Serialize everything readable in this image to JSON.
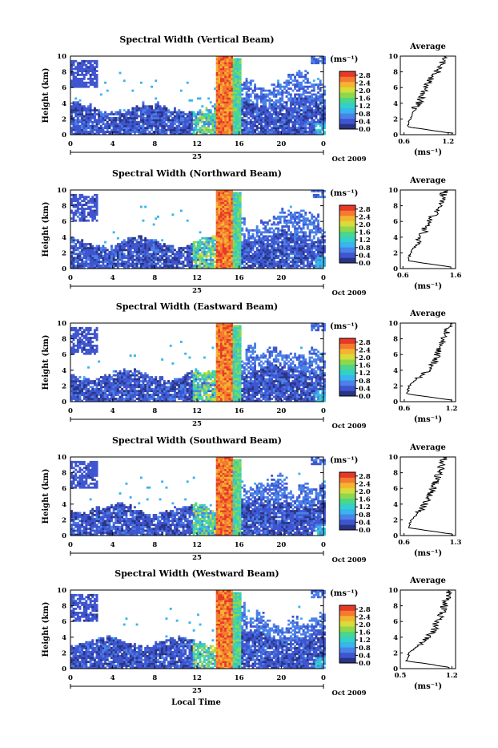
{
  "colorbar": {
    "unit": "(ms⁻¹)",
    "ticks": [
      "2.8",
      "2.4",
      "2.0",
      "1.6",
      "1.2",
      "0.8",
      "0.4",
      "0.0"
    ],
    "range": [
      0,
      3.0
    ],
    "colors": [
      "#2a3484",
      "#3f55d0",
      "#4a82e8",
      "#38b4ee",
      "#32d0c8",
      "#4cd68a",
      "#8ed84a",
      "#d8dc38",
      "#f4b430",
      "#f47a30",
      "#e83828"
    ]
  },
  "labels": {
    "ylabel": "Height (km)",
    "avg_title": "Average",
    "avg_unit": "(ms⁻¹)",
    "date_day": "25",
    "date_label": "Oct 2009",
    "xlabel": "Local Time"
  },
  "chart_data": [
    {
      "type": "heatmap",
      "title": "Spectral Width (Vertical Beam)",
      "x_ticks": [
        "0",
        "4",
        "8",
        "12",
        "16",
        "20",
        "0"
      ],
      "y_ticks": [
        "0",
        "2",
        "4",
        "6",
        "8",
        "10"
      ],
      "xlim": [
        0,
        24
      ],
      "ylim": [
        0,
        10
      ],
      "clim": [
        0,
        3.0
      ],
      "average_profile": {
        "x_ticks": [
          "0.6",
          "1.2"
        ],
        "xlim": [
          0.55,
          1.3
        ],
        "height_km": [
          0.2,
          1,
          2,
          3,
          4,
          5,
          6,
          7,
          8,
          9,
          10
        ],
        "spectral_width": [
          1.25,
          0.65,
          0.68,
          0.72,
          0.8,
          0.84,
          0.9,
          0.96,
          1.05,
          1.1,
          1.15
        ]
      }
    },
    {
      "type": "heatmap",
      "title": "Spectral Width (Northward Beam)",
      "x_ticks": [
        "0",
        "4",
        "8",
        "12",
        "16",
        "20",
        "0"
      ],
      "y_ticks": [
        "0",
        "2",
        "4",
        "6",
        "8",
        "10"
      ],
      "xlim": [
        0,
        24
      ],
      "ylim": [
        0,
        10
      ],
      "clim": [
        0,
        3.0
      ],
      "average_profile": {
        "x_ticks": [
          "0.6",
          "1.6"
        ],
        "xlim": [
          0.55,
          1.6
        ],
        "height_km": [
          0.2,
          1,
          2,
          3,
          4,
          5,
          6,
          7,
          8,
          9,
          10
        ],
        "spectral_width": [
          1.5,
          0.7,
          0.74,
          0.85,
          0.95,
          1.02,
          1.1,
          1.2,
          1.28,
          1.34,
          1.4
        ]
      }
    },
    {
      "type": "heatmap",
      "title": "Spectral Width (Eastward Beam)",
      "x_ticks": [
        "0",
        "4",
        "8",
        "12",
        "16",
        "20",
        "0"
      ],
      "y_ticks": [
        "0",
        "2",
        "4",
        "6",
        "8",
        "10"
      ],
      "xlim": [
        0,
        24
      ],
      "ylim": [
        0,
        10
      ],
      "clim": [
        0,
        3.0
      ],
      "average_profile": {
        "x_ticks": [
          "0.6",
          "1.2"
        ],
        "xlim": [
          0.55,
          1.25
        ],
        "height_km": [
          0.2,
          1,
          2,
          3,
          4,
          5,
          6,
          7,
          8,
          9,
          10
        ],
        "spectral_width": [
          1.2,
          0.64,
          0.66,
          0.78,
          0.9,
          0.98,
          1.02,
          1.05,
          1.1,
          1.15,
          1.18
        ]
      }
    },
    {
      "type": "heatmap",
      "title": "Spectral Width (Southward Beam)",
      "x_ticks": [
        "0",
        "4",
        "8",
        "12",
        "16",
        "20",
        "0"
      ],
      "y_ticks": [
        "0",
        "2",
        "4",
        "6",
        "8",
        "10"
      ],
      "xlim": [
        0,
        24
      ],
      "ylim": [
        0,
        10
      ],
      "clim": [
        0,
        3.0
      ],
      "average_profile": {
        "x_ticks": [
          "0.6",
          "1.3"
        ],
        "xlim": [
          0.55,
          1.3
        ],
        "height_km": [
          0.2,
          1,
          2,
          3,
          4,
          5,
          6,
          7,
          8,
          9,
          10
        ],
        "spectral_width": [
          1.25,
          0.66,
          0.7,
          0.8,
          0.88,
          0.95,
          1.0,
          1.04,
          1.08,
          1.12,
          1.15
        ]
      }
    },
    {
      "type": "heatmap",
      "title": "Spectral Width (Westward Beam)",
      "x_ticks": [
        "0",
        "4",
        "8",
        "12",
        "16",
        "20",
        "0"
      ],
      "y_ticks": [
        "0",
        "2",
        "4",
        "6",
        "8",
        "10"
      ],
      "xlim": [
        0,
        24
      ],
      "ylim": [
        0,
        10
      ],
      "clim": [
        0,
        3.0
      ],
      "average_profile": {
        "x_ticks": [
          "0.5",
          "1.2"
        ],
        "xlim": [
          0.5,
          1.25
        ],
        "height_km": [
          0.2,
          1,
          2,
          3,
          4,
          5,
          6,
          7,
          8,
          9,
          10
        ],
        "spectral_width": [
          1.15,
          0.58,
          0.62,
          0.76,
          0.88,
          0.96,
          1.0,
          1.06,
          1.1,
          1.14,
          1.18
        ]
      }
    }
  ]
}
